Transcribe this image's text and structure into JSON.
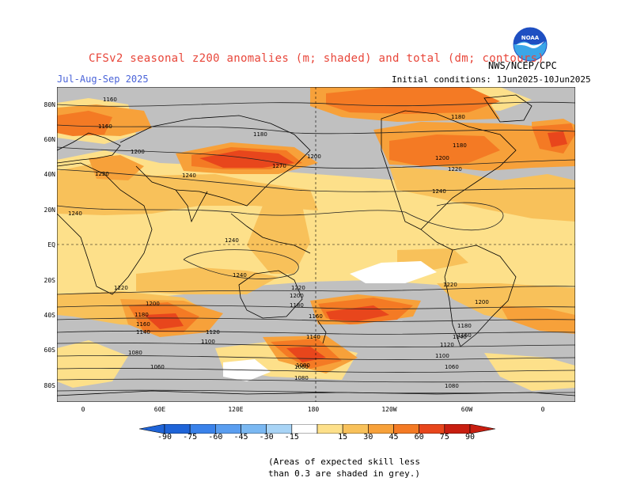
{
  "title": "CFSv2 seasonal z200 anomalies (m; shaded) and total (dm; contours)",
  "season": "Jul-Aug-Sep 2025",
  "initial_conditions": "Initial conditions: 1Jun2025-10Jun2025",
  "agency": "NWS/NCEP/CPC",
  "logo": {
    "icon": "noaa-logo",
    "colors": {
      "top": "#1e4fc2",
      "bottom": "#3aa6e8",
      "bird": "#ffffff"
    }
  },
  "map": {
    "lat_labels": [
      "80N",
      "60N",
      "40N",
      "20N",
      "EQ",
      "20S",
      "40S",
      "60S",
      "80S"
    ],
    "lon_labels": [
      "0",
      "60E",
      "120E",
      "180",
      "120W",
      "60W",
      "0"
    ],
    "contour_labels": [
      "1160",
      "1160",
      "1180",
      "1200",
      "1220",
      "1240",
      "1270",
      "1200",
      "1180",
      "1180",
      "1200",
      "1220",
      "1240",
      "1240",
      "1240",
      "1240",
      "1220",
      "1220",
      "1200",
      "1180",
      "1160",
      "1140",
      "1200",
      "1180",
      "1160",
      "1140",
      "1120",
      "1100",
      "1080",
      "1060",
      "1060",
      "1080",
      "1120",
      "1100",
      "1060",
      "1080",
      "1220",
      "1200",
      "1180",
      "1160",
      "1140",
      "1080"
    ],
    "grey_meaning": "skill < 0.3",
    "colors": {
      "grey": "#c0c0c0",
      "white": "#ffffff",
      "c15": "#fde08a",
      "c30": "#f8c15a",
      "c45": "#f7a13a",
      "c60": "#f47a24",
      "c75": "#e8461c",
      "c90": "#c81e10"
    }
  },
  "colorbar": {
    "labels": [
      "-90",
      "-75",
      "-60",
      "-45",
      "-30",
      "-15",
      "15",
      "30",
      "45",
      "60",
      "75",
      "90"
    ],
    "colors": [
      "#1f64d8",
      "#3a82ea",
      "#5a9ef0",
      "#7ab8f2",
      "#a8d4f6",
      "#ffffff",
      "#fde08a",
      "#f8c15a",
      "#f7a13a",
      "#f47a24",
      "#e8461c",
      "#c81e10"
    ]
  },
  "note_line1": "(Areas of expected skill less",
  "note_line2": "than 0.3 are shaded in grey.)"
}
